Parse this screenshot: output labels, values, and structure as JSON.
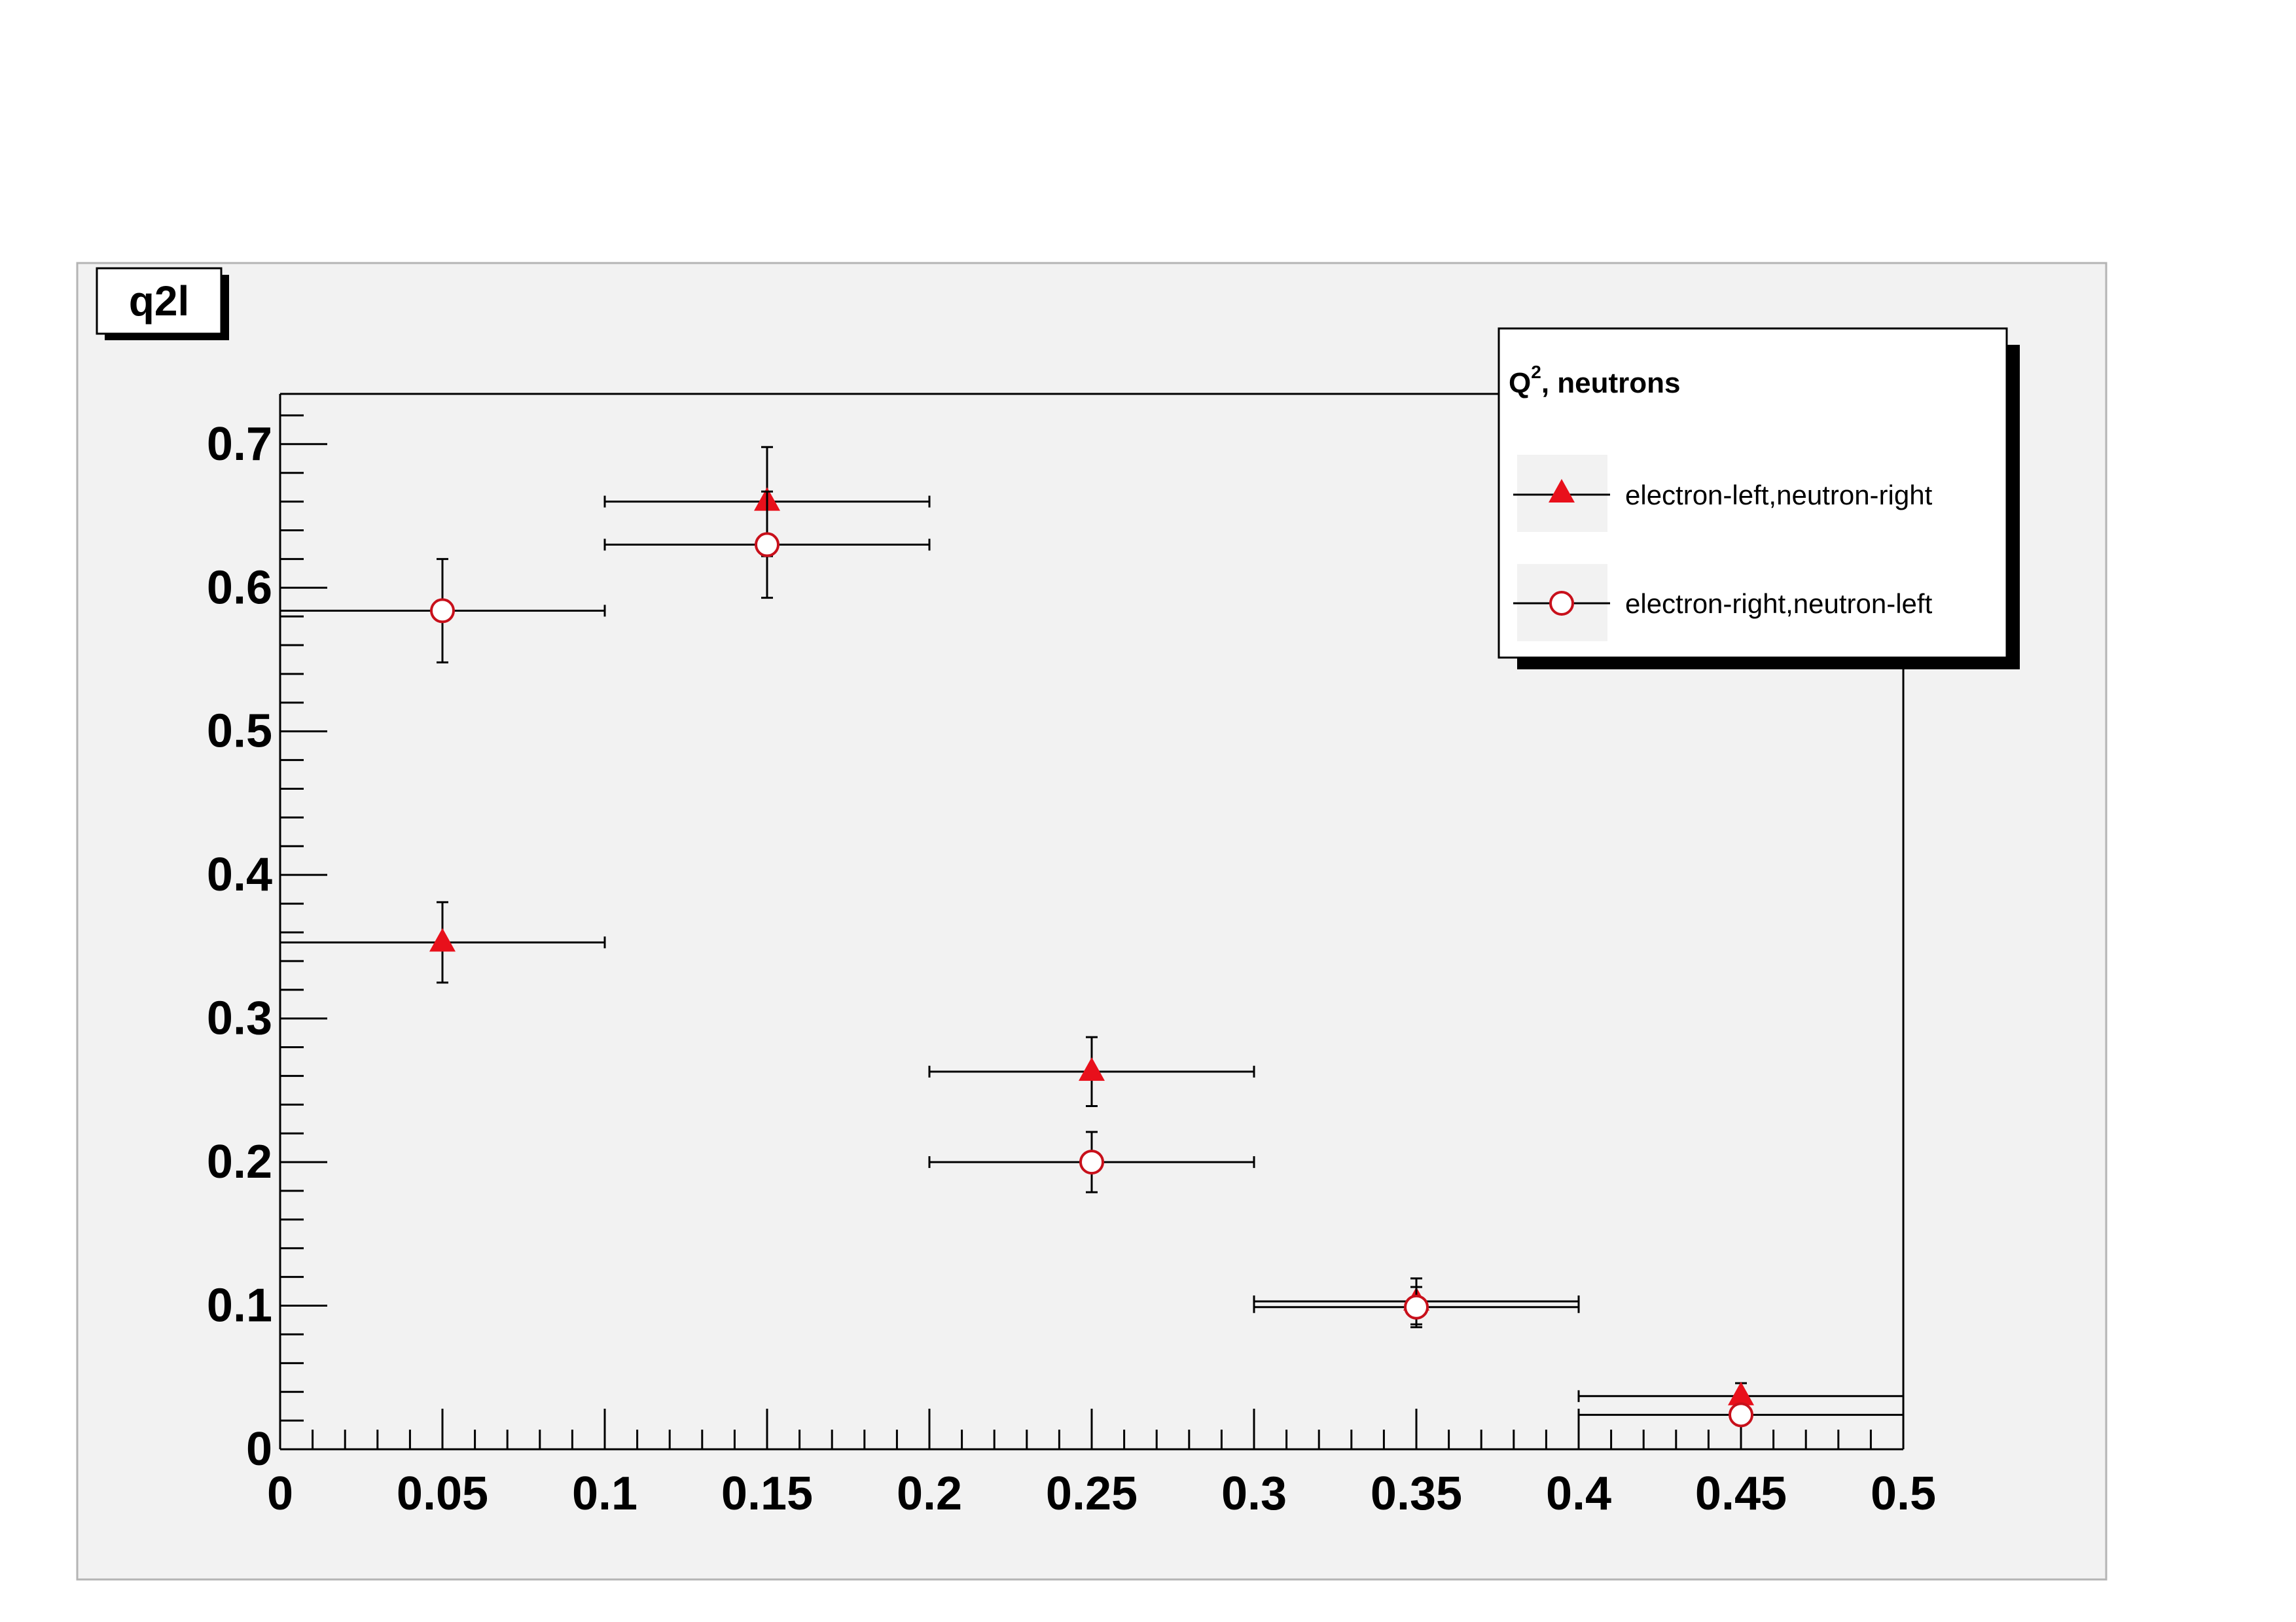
{
  "title_box": {
    "text": "q2l"
  },
  "legend": {
    "header_main": "Q",
    "header_sup": "2",
    "header_rest": ", neutrons",
    "entries": [
      "electron-left,neutron-right",
      "electron-right,neutron-left"
    ]
  },
  "colors": {
    "marker": "#e8101b",
    "pad": "#f2f2f2",
    "axis": "#000000"
  },
  "chart_data": {
    "type": "scatter",
    "title": "q2l",
    "xlabel": "",
    "ylabel": "",
    "xlim": [
      0,
      0.5
    ],
    "ylim": [
      0,
      0.735
    ],
    "x_ticks": [
      0,
      0.05,
      0.1,
      0.15,
      0.2,
      0.25,
      0.3,
      0.35,
      0.4,
      0.45,
      0.5
    ],
    "x_tick_labels": [
      "0",
      "0.05",
      "0.1",
      "0.15",
      "0.2",
      "0.25",
      "0.3",
      "0.35",
      "0.4",
      "0.45",
      "0.5"
    ],
    "y_ticks": [
      0,
      0.1,
      0.2,
      0.3,
      0.4,
      0.5,
      0.6,
      0.7
    ],
    "y_tick_labels": [
      "0",
      "0.1",
      "0.2",
      "0.3",
      "0.4",
      "0.5",
      "0.6",
      "0.7"
    ],
    "legend_position": "top-right",
    "grid": false,
    "series": [
      {
        "name": "electron-left,neutron-right",
        "marker": "filled-triangle",
        "x": [
          0.05,
          0.15,
          0.25,
          0.35,
          0.45
        ],
        "xerr": [
          0.05,
          0.05,
          0.05,
          0.05,
          0.05
        ],
        "y": [
          0.353,
          0.66,
          0.263,
          0.103,
          0.037
        ],
        "yerr": [
          0.028,
          0.038,
          0.024,
          0.016,
          0.009
        ]
      },
      {
        "name": "electron-right,neutron-left",
        "marker": "open-circle",
        "x": [
          0.05,
          0.15,
          0.25,
          0.35,
          0.45
        ],
        "xerr": [
          0.05,
          0.05,
          0.05,
          0.05,
          0.05
        ],
        "y": [
          0.584,
          0.63,
          0.2,
          0.099,
          0.024
        ],
        "yerr": [
          0.036,
          0.037,
          0.021,
          0.014,
          0.007
        ]
      }
    ]
  }
}
